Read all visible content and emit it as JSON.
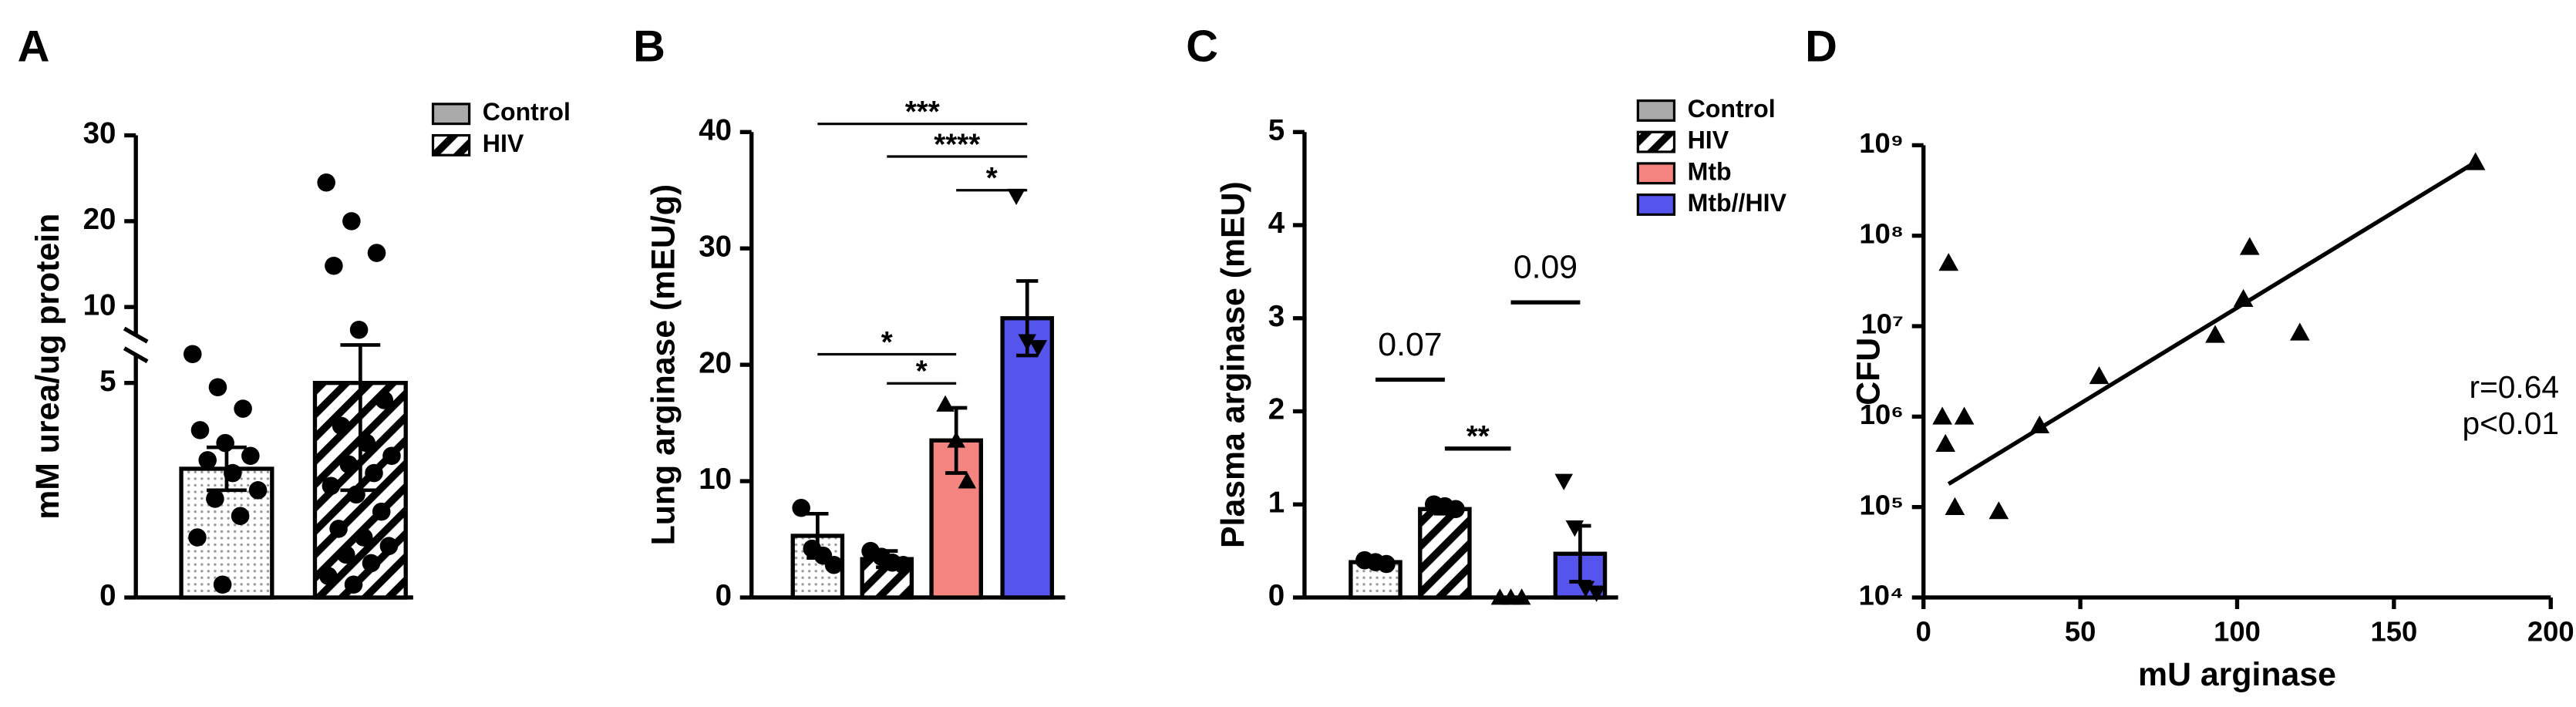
{
  "chart_data": [
    {
      "type": "bar",
      "label": "A",
      "ylabel": "mM urea/ug protein",
      "ylim": [
        0,
        30
      ],
      "yticks": [
        0,
        5,
        10,
        20,
        30
      ],
      "ybreak": [
        5,
        10
      ],
      "legend": "upper right",
      "series": [
        {
          "name": "Control",
          "color": "#ffffff",
          "pattern": "dots",
          "marker": "circle",
          "value": 3.0,
          "error": 0.5,
          "points": [
            6.9,
            4.9,
            4.4,
            3.9,
            3.6,
            3.3,
            3.2,
            2.9,
            2.5,
            2.3,
            1.9,
            1.4,
            0.3
          ]
        },
        {
          "name": "HIV",
          "color": "#ffffff",
          "pattern": "hatch",
          "marker": "circle",
          "value": 5.0,
          "error": 2.5,
          "points": [
            24.5,
            20,
            16.3,
            14.8,
            8.5,
            4.6,
            4.0,
            3.6,
            3.3,
            3.1,
            2.9,
            2.6,
            2.4,
            2.0,
            1.6,
            1.4,
            1.2,
            1.0,
            0.8,
            0.5,
            0.3
          ]
        }
      ]
    },
    {
      "type": "bar",
      "label": "B",
      "ylabel": "Lung arginase (mEU/g)",
      "ylim": [
        0,
        40
      ],
      "yticks": [
        0,
        10,
        20,
        30,
        40
      ],
      "series": [
        {
          "color": "#ffffff",
          "pattern": "dots",
          "marker": "circle",
          "value": 5.3,
          "error": 1.9,
          "points": [
            7.7,
            4.2,
            3.6,
            2.8
          ]
        },
        {
          "color": "#ffffff",
          "pattern": "hatch",
          "marker": "circle",
          "value": 3.3,
          "error": 0.7,
          "points": [
            4.0,
            3.5,
            3.0,
            2.8
          ]
        },
        {
          "color": "#f4847f",
          "pattern": "solid",
          "marker": "triangle",
          "value": 13.5,
          "error": 2.8,
          "points": [
            16.6,
            13.5,
            10.0
          ]
        },
        {
          "color": "#5555ee",
          "pattern": "solid",
          "marker": "triangle-down",
          "value": 24.0,
          "error": 3.2,
          "points": [
            34.5,
            22.0,
            21.5
          ]
        }
      ],
      "annotations": [
        {
          "text": "***",
          "from": 0,
          "to": 3,
          "y": 40.7
        },
        {
          "text": "****",
          "from": 1,
          "to": 3,
          "y": 37.9
        },
        {
          "text": "*",
          "from": 2,
          "to": 3,
          "y": 35.0
        },
        {
          "text": "*",
          "from": 0,
          "to": 2,
          "y": 20.9
        },
        {
          "text": "*",
          "from": 1,
          "to": 2,
          "y": 18.4
        }
      ]
    },
    {
      "type": "bar",
      "label": "C",
      "ylabel": "Plasma arginase (mEU)",
      "ylim": [
        0,
        5
      ],
      "yticks": [
        0,
        1,
        2,
        3,
        4,
        5
      ],
      "legend": "upper right",
      "series": [
        {
          "name": "Control",
          "color": "#ffffff",
          "pattern": "dots",
          "marker": "circle",
          "value": 0.38,
          "error": 0.03,
          "points": [
            0.4,
            0.38,
            0.36
          ]
        },
        {
          "name": "HIV",
          "color": "#ffffff",
          "pattern": "hatch",
          "marker": "circle",
          "value": 0.95,
          "error": 0.05,
          "points": [
            1.0,
            0.98,
            0.95
          ]
        },
        {
          "name": "Mtb",
          "color": "#f4847f",
          "pattern": "solid",
          "marker": "triangle",
          "value": 0,
          "error": 0,
          "points": [
            0,
            0,
            0
          ]
        },
        {
          "name": "Mtb//HIV",
          "color": "#5555ee",
          "pattern": "solid",
          "marker": "triangle-down",
          "value": 0.47,
          "error": 0.3,
          "points": [
            1.25,
            0.75,
            0.1,
            0.05
          ]
        }
      ],
      "annotations": [
        {
          "text": "0.07",
          "from": 0,
          "to": 1,
          "y": 2.34
        },
        {
          "text": "**",
          "from": 1,
          "to": 2,
          "y": 1.6
        },
        {
          "text": "0.09",
          "from": 2,
          "to": 3,
          "y": 3.17
        }
      ]
    },
    {
      "type": "scatter",
      "label": "D",
      "xlabel": "mU arginase",
      "ylabel": "CFU",
      "xlim": [
        0,
        200
      ],
      "xticks": [
        0,
        50,
        100,
        150,
        200
      ],
      "ylog": true,
      "ylim": [
        10000,
        1000000000
      ],
      "yticks": [
        {
          "value": 10000,
          "label": "10⁴"
        },
        {
          "value": 100000,
          "label": "10⁵"
        },
        {
          "value": 1000000,
          "label": "10⁶"
        },
        {
          "value": 10000000,
          "label": "10⁷"
        },
        {
          "value": 100000000,
          "label": "10⁸"
        },
        {
          "value": 1000000000,
          "label": "10⁹"
        }
      ],
      "series": [
        {
          "marker": "triangle",
          "color": "#000000",
          "x": [
            8,
            6,
            13,
            7,
            10,
            24,
            37,
            56,
            93,
            102,
            104,
            120,
            176
          ],
          "y": [
            50000000,
            1000000,
            1000000,
            500000,
            100000,
            90000,
            800000,
            2800000,
            8000000,
            20000000,
            75000000,
            8500000,
            650000000
          ]
        }
      ],
      "fit": {
        "x": [
          8,
          176
        ],
        "y": [
          180000,
          650000000
        ]
      },
      "annotations": [
        "r=0.64",
        "p<0.01"
      ]
    }
  ]
}
